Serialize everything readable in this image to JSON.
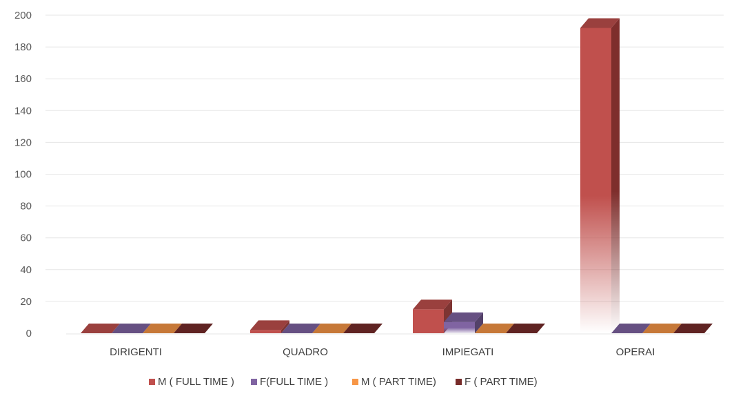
{
  "chart_data": {
    "type": "bar",
    "categories": [
      "DIRIGENTI",
      "QUADRO",
      "IMPIEGATI",
      "OPERAI"
    ],
    "series": [
      {
        "name": "M ( FULL TIME )",
        "values": [
          0,
          2,
          15,
          192
        ],
        "color": "#c0504d"
      },
      {
        "name": "F(FULL TIME )",
        "values": [
          0,
          0,
          7,
          0
        ],
        "color": "#8064a2"
      },
      {
        "name": "M ( PART TIME)",
        "values": [
          0,
          0,
          0,
          0
        ],
        "color": "#f79646"
      },
      {
        "name": "F ( PART TIME)",
        "values": [
          0,
          0,
          0,
          0
        ],
        "color": "#772c2a"
      }
    ],
    "yticks": [
      "0",
      "20",
      "40",
      "60",
      "80",
      "100",
      "120",
      "140",
      "160",
      "180",
      "200"
    ],
    "ylim": [
      0,
      200
    ],
    "grid": true,
    "legend": "bottom",
    "style": "3d-column"
  }
}
